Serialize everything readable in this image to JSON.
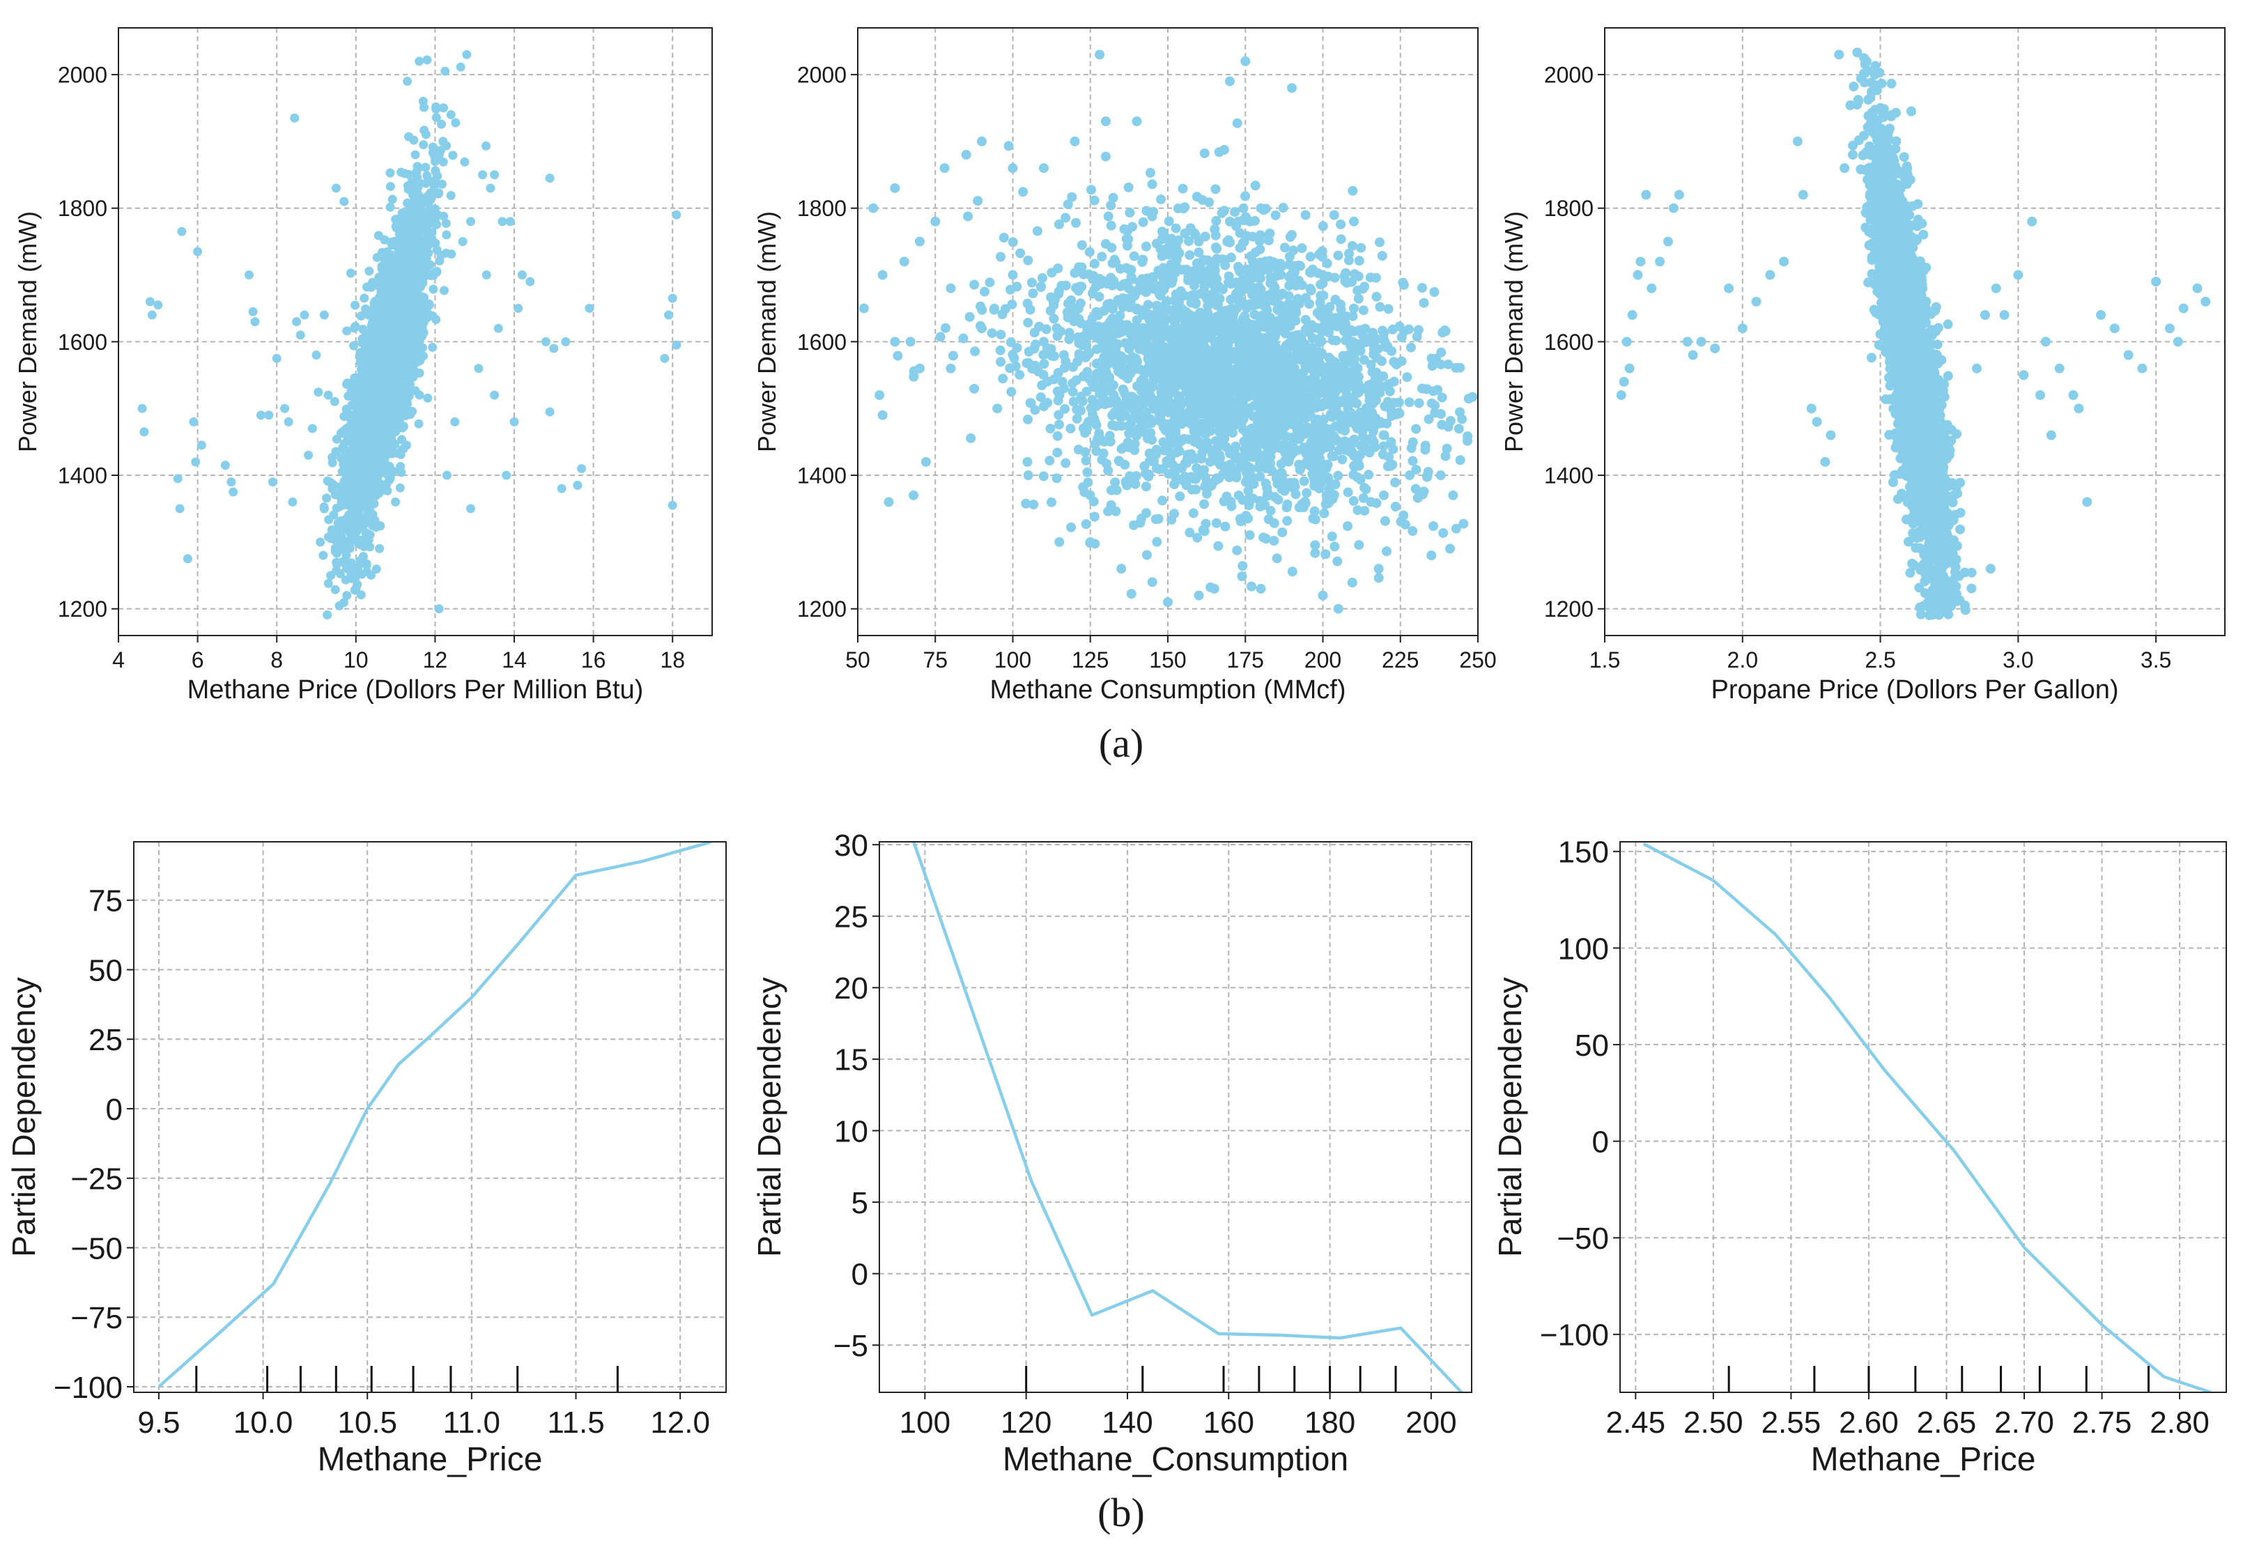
{
  "colors": {
    "series": "#87CEEB",
    "grid": "#b4b4b4",
    "axis": "#222222"
  },
  "captions": {
    "a": "(a)",
    "b": "(b)"
  },
  "chart_data": [
    {
      "type": "scatter",
      "panel": "a1",
      "xlabel": "Methane Price (Dollors Per Million Btu)",
      "ylabel": "Power Demand (mW)",
      "xlim": [
        4.0,
        19.0
      ],
      "ylim": [
        1160,
        2070
      ],
      "xticks": [
        4,
        6,
        8,
        10,
        12,
        14,
        16,
        18
      ],
      "yticks": [
        1200,
        1400,
        1600,
        1800,
        2000
      ],
      "points": [
        [
          4.6,
          1500
        ],
        [
          4.65,
          1465
        ],
        [
          4.8,
          1660
        ],
        [
          4.85,
          1640
        ],
        [
          5.0,
          1655
        ],
        [
          5.5,
          1395
        ],
        [
          5.55,
          1350
        ],
        [
          5.6,
          1765
        ],
        [
          5.75,
          1275
        ],
        [
          5.9,
          1480
        ],
        [
          5.95,
          1420
        ],
        [
          6.0,
          1735
        ],
        [
          6.1,
          1445
        ],
        [
          6.7,
          1415
        ],
        [
          6.85,
          1390
        ],
        [
          6.9,
          1375
        ],
        [
          7.3,
          1700
        ],
        [
          7.4,
          1645
        ],
        [
          7.45,
          1630
        ],
        [
          7.6,
          1490
        ],
        [
          7.8,
          1490
        ],
        [
          7.9,
          1390
        ],
        [
          8.0,
          1575
        ],
        [
          8.2,
          1500
        ],
        [
          8.3,
          1480
        ],
        [
          8.4,
          1360
        ],
        [
          8.45,
          1935
        ],
        [
          8.5,
          1630
        ],
        [
          8.6,
          1610
        ],
        [
          8.7,
          1640
        ],
        [
          8.8,
          1430
        ],
        [
          9.0,
          1580
        ],
        [
          9.2,
          1640
        ],
        [
          9.3,
          1520
        ],
        [
          9.5,
          1830
        ],
        [
          9.7,
          1810
        ],
        [
          11.3,
          1990
        ],
        [
          11.6,
          2020
        ],
        [
          11.8,
          2022
        ],
        [
          12.8,
          2030
        ],
        [
          12.4,
          1940
        ],
        [
          12.2,
          1900
        ],
        [
          12.0,
          1870
        ],
        [
          13.2,
          1850
        ],
        [
          13.5,
          1850
        ],
        [
          13.4,
          1830
        ],
        [
          12.9,
          1780
        ],
        [
          13.7,
          1780
        ],
        [
          13.9,
          1780
        ],
        [
          14.2,
          1700
        ],
        [
          14.4,
          1690
        ],
        [
          14.1,
          1650
        ],
        [
          14.0,
          1480
        ],
        [
          13.8,
          1400
        ],
        [
          14.9,
          1845
        ],
        [
          14.8,
          1600
        ],
        [
          15.0,
          1590
        ],
        [
          14.9,
          1495
        ],
        [
          15.2,
          1380
        ],
        [
          15.3,
          1600
        ],
        [
          15.6,
          1385
        ],
        [
          15.7,
          1410
        ],
        [
          15.9,
          1650
        ],
        [
          17.8,
          1575
        ],
        [
          17.9,
          1640
        ],
        [
          18.0,
          1665
        ],
        [
          18.1,
          1595
        ],
        [
          18.0,
          1355
        ],
        [
          18.1,
          1790
        ],
        [
          12.1,
          1200
        ],
        [
          10.0,
          1230
        ],
        [
          11.0,
          1360
        ],
        [
          12.5,
          1480
        ],
        [
          13.1,
          1560
        ],
        [
          13.6,
          1620
        ],
        [
          13.3,
          1700
        ],
        [
          12.7,
          1750
        ],
        [
          11.9,
          1820
        ],
        [
          11.5,
          1880
        ],
        [
          11.7,
          1960
        ],
        [
          8.9,
          1470
        ],
        [
          9.4,
          1380
        ],
        [
          9.1,
          1300
        ],
        [
          12.3,
          1400
        ],
        [
          12.9,
          1350
        ],
        [
          13.5,
          1520
        ]
      ],
      "cloud": {
        "count": 2600,
        "center": [
          10.75,
          1560
        ],
        "spread": [
          0.55,
          95
        ],
        "trend": 200,
        "seed": 11
      }
    },
    {
      "type": "scatter",
      "panel": "a2",
      "xlabel": "Methane Consumption (MMcf)",
      "ylabel": "Power Demand (mW)",
      "xlim": [
        50,
        250
      ],
      "ylim": [
        1160,
        2070
      ],
      "xticks": [
        50,
        75,
        100,
        125,
        150,
        175,
        200,
        225,
        250
      ],
      "yticks": [
        1200,
        1400,
        1600,
        1800,
        2000
      ],
      "points": [
        [
          52,
          1650
        ],
        [
          55,
          1800
        ],
        [
          57,
          1520
        ],
        [
          58,
          1490
        ],
        [
          60,
          1360
        ],
        [
          62,
          1830
        ],
        [
          65,
          1720
        ],
        [
          67,
          1600
        ],
        [
          68,
          1370
        ],
        [
          70,
          1750
        ],
        [
          72,
          1420
        ],
        [
          75,
          1780
        ],
        [
          78,
          1860
        ],
        [
          80,
          1560
        ],
        [
          85,
          1880
        ],
        [
          90,
          1900
        ],
        [
          95,
          1500
        ],
        [
          100,
          1860
        ],
        [
          105,
          1400
        ],
        [
          110,
          1860
        ],
        [
          115,
          1300
        ],
        [
          120,
          1900
        ],
        [
          125,
          1300
        ],
        [
          128,
          2030
        ],
        [
          130,
          1930
        ],
        [
          135,
          1260
        ],
        [
          140,
          1930
        ],
        [
          145,
          1240
        ],
        [
          150,
          1210
        ],
        [
          160,
          1220
        ],
        [
          165,
          1230
        ],
        [
          170,
          1990
        ],
        [
          175,
          2020
        ],
        [
          180,
          1230
        ],
        [
          190,
          1980
        ],
        [
          200,
          1220
        ],
        [
          205,
          1200
        ],
        [
          210,
          1780
        ],
        [
          215,
          1520
        ],
        [
          218,
          1260
        ],
        [
          222,
          1450
        ],
        [
          226,
          1340
        ],
        [
          228,
          1400
        ],
        [
          232,
          1530
        ],
        [
          235,
          1280
        ],
        [
          238,
          1400
        ],
        [
          240,
          1440
        ],
        [
          241,
          1290
        ],
        [
          242,
          1370
        ],
        [
          243,
          1320
        ],
        [
          58,
          1700
        ],
        [
          62,
          1600
        ],
        [
          70,
          1560
        ],
        [
          80,
          1680
        ],
        [
          90,
          1620
        ],
        [
          100,
          1700
        ],
        [
          110,
          1600
        ],
        [
          120,
          1650
        ],
        [
          130,
          1580
        ],
        [
          140,
          1650
        ],
        [
          150,
          1700
        ],
        [
          160,
          1750
        ],
        [
          170,
          1780
        ],
        [
          180,
          1800
        ],
        [
          190,
          1760
        ],
        [
          200,
          1700
        ],
        [
          210,
          1650
        ],
        [
          220,
          1600
        ]
      ],
      "cloud": {
        "count": 2800,
        "center": [
          170,
          1555
        ],
        "spread": [
          30,
          120
        ],
        "trend": -40,
        "seed": 22
      }
    },
    {
      "type": "scatter",
      "panel": "a3",
      "xlabel": "Propane Price (Dollors Per Gallon)",
      "ylabel": "Power Demand (mW)",
      "xlim": [
        1.5,
        3.75
      ],
      "ylim": [
        1160,
        2070
      ],
      "xticks": [
        1.5,
        2.0,
        2.5,
        3.0,
        3.5
      ],
      "xticklabels": [
        "1.5",
        "2.0",
        "2.5",
        "3.0",
        "3.5"
      ],
      "yticks": [
        1200,
        1400,
        1600,
        1800,
        2000
      ],
      "points": [
        [
          1.56,
          1520
        ],
        [
          1.57,
          1540
        ],
        [
          1.58,
          1600
        ],
        [
          1.59,
          1560
        ],
        [
          1.6,
          1640
        ],
        [
          1.62,
          1700
        ],
        [
          1.63,
          1720
        ],
        [
          1.65,
          1820
        ],
        [
          1.67,
          1680
        ],
        [
          1.7,
          1720
        ],
        [
          1.73,
          1750
        ],
        [
          1.75,
          1800
        ],
        [
          1.77,
          1820
        ],
        [
          1.8,
          1600
        ],
        [
          1.82,
          1580
        ],
        [
          1.85,
          1600
        ],
        [
          1.9,
          1590
        ],
        [
          1.95,
          1680
        ],
        [
          2.0,
          1620
        ],
        [
          2.05,
          1660
        ],
        [
          2.1,
          1700
        ],
        [
          2.15,
          1720
        ],
        [
          2.2,
          1900
        ],
        [
          2.22,
          1820
        ],
        [
          2.25,
          1500
        ],
        [
          2.27,
          1480
        ],
        [
          2.3,
          1420
        ],
        [
          2.32,
          1460
        ],
        [
          2.35,
          2030
        ],
        [
          2.37,
          1860
        ],
        [
          2.4,
          1880
        ],
        [
          2.42,
          1960
        ],
        [
          2.45,
          2020
        ],
        [
          2.48,
          2000
        ],
        [
          2.5,
          1950
        ],
        [
          2.9,
          1260
        ],
        [
          2.95,
          1640
        ],
        [
          3.0,
          1700
        ],
        [
          3.05,
          1780
        ],
        [
          3.1,
          1600
        ],
        [
          3.15,
          1560
        ],
        [
          3.2,
          1520
        ],
        [
          3.22,
          1500
        ],
        [
          3.25,
          1360
        ],
        [
          3.3,
          1640
        ],
        [
          3.35,
          1620
        ],
        [
          3.4,
          1580
        ],
        [
          3.45,
          1560
        ],
        [
          3.5,
          1690
        ],
        [
          3.55,
          1620
        ],
        [
          3.58,
          1600
        ],
        [
          3.6,
          1650
        ],
        [
          3.65,
          1680
        ],
        [
          3.68,
          1660
        ],
        [
          2.85,
          1560
        ],
        [
          2.88,
          1640
        ],
        [
          2.92,
          1680
        ],
        [
          3.02,
          1550
        ],
        [
          3.08,
          1520
        ],
        [
          3.12,
          1460
        ]
      ],
      "cloud": {
        "count": 2800,
        "center": [
          2.615,
          1560
        ],
        "spread": [
          0.07,
          115
        ],
        "trend": -280,
        "seed": 33
      }
    },
    {
      "type": "line",
      "panel": "b1",
      "xlabel": "Methane_Price",
      "ylabel": "Partial Dependency",
      "xlim": [
        9.38,
        12.22
      ],
      "ylim": [
        -102,
        96
      ],
      "xticks": [
        9.5,
        10.0,
        10.5,
        11.0,
        11.5,
        12.0
      ],
      "xticklabels": [
        "9.5",
        "10.0",
        "10.5",
        "11.0",
        "11.5",
        "12.0"
      ],
      "yticks": [
        -100,
        -75,
        -50,
        -25,
        0,
        25,
        50,
        75
      ],
      "yticklabels": [
        "−100",
        "−75",
        "−50",
        "−25",
        "0",
        "25",
        "50",
        "75"
      ],
      "x": [
        9.5,
        9.8,
        10.05,
        10.32,
        10.5,
        10.65,
        10.8,
        11.0,
        11.22,
        11.5,
        11.82,
        12.15
      ],
      "y": [
        -100,
        -80,
        -63,
        -27,
        0,
        16,
        26,
        40,
        59,
        84,
        89,
        96
      ],
      "rug": [
        9.68,
        10.02,
        10.18,
        10.35,
        10.52,
        10.72,
        10.9,
        11.22,
        11.7
      ]
    },
    {
      "type": "line",
      "panel": "b2",
      "xlabel": "Methane_Consumption",
      "ylabel": "Partial Dependency",
      "xlim": [
        91,
        208
      ],
      "ylim": [
        -8.3,
        30.2
      ],
      "xticks": [
        100,
        120,
        140,
        160,
        180,
        200
      ],
      "yticks": [
        -5,
        0,
        5,
        10,
        15,
        20,
        25,
        30
      ],
      "yticklabels": [
        "−5",
        "0",
        "5",
        "10",
        "15",
        "20",
        "25",
        "30"
      ],
      "x": [
        97,
        121,
        133,
        145,
        158,
        170,
        182,
        194,
        206
      ],
      "y": [
        31,
        6.5,
        -2.9,
        -1.2,
        -4.2,
        -4.3,
        -4.5,
        -3.8,
        -8.3
      ],
      "rug": [
        120,
        143,
        159,
        166,
        173,
        180,
        186,
        193
      ]
    },
    {
      "type": "line",
      "panel": "b3",
      "xlabel": "Methane_Price",
      "ylabel": "Partial Dependency",
      "xlim": [
        2.44,
        2.83
      ],
      "ylim": [
        -130,
        155
      ],
      "xticks": [
        2.45,
        2.5,
        2.55,
        2.6,
        2.65,
        2.7,
        2.75,
        2.8
      ],
      "xticklabels": [
        "2.45",
        "2.50",
        "2.55",
        "2.60",
        "2.65",
        "2.70",
        "2.75",
        "2.80"
      ],
      "yticks": [
        -100,
        -50,
        0,
        50,
        100,
        150
      ],
      "yticklabels": [
        "−100",
        "−50",
        "0",
        "50",
        "100",
        "150"
      ],
      "x": [
        2.455,
        2.5,
        2.54,
        2.575,
        2.61,
        2.655,
        2.7,
        2.75,
        2.79,
        2.82
      ],
      "y": [
        154,
        135,
        107,
        74,
        37,
        -5,
        -55,
        -95,
        -122,
        -130
      ],
      "rug": [
        2.51,
        2.565,
        2.6,
        2.63,
        2.66,
        2.685,
        2.71,
        2.74,
        2.78
      ]
    }
  ]
}
